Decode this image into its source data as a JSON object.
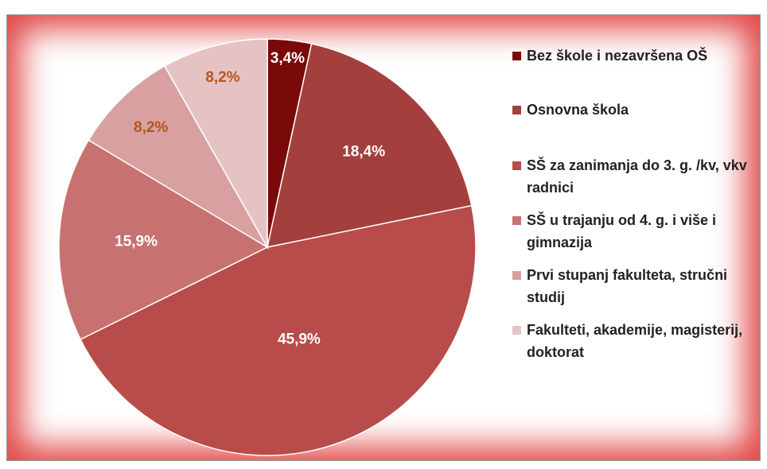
{
  "chart_data": {
    "type": "pie",
    "categories": [
      "Bez škole i nezavršena OŠ",
      "Osnovna škola",
      "SŠ za zanimanja do 3. g. /kv, vkv radnici",
      "SŠ u trajanju od 4. g. i više i gimnazija",
      "Prvi stupanj fakulteta, stručni studij",
      "Fakulteti, akademije, magisterij, doktorat"
    ],
    "values": [
      3.4,
      18.4,
      45.9,
      15.9,
      8.2,
      8.2
    ],
    "value_labels": [
      "3,4%",
      "18,4%",
      "45,9%",
      "15,9%",
      "8,2%",
      "8,2%"
    ],
    "colors": [
      "#7a0a0a",
      "#a3403d",
      "#b84c4a",
      "#c77270",
      "#d8a0a0",
      "#e6c3c3"
    ],
    "legend": "right"
  }
}
